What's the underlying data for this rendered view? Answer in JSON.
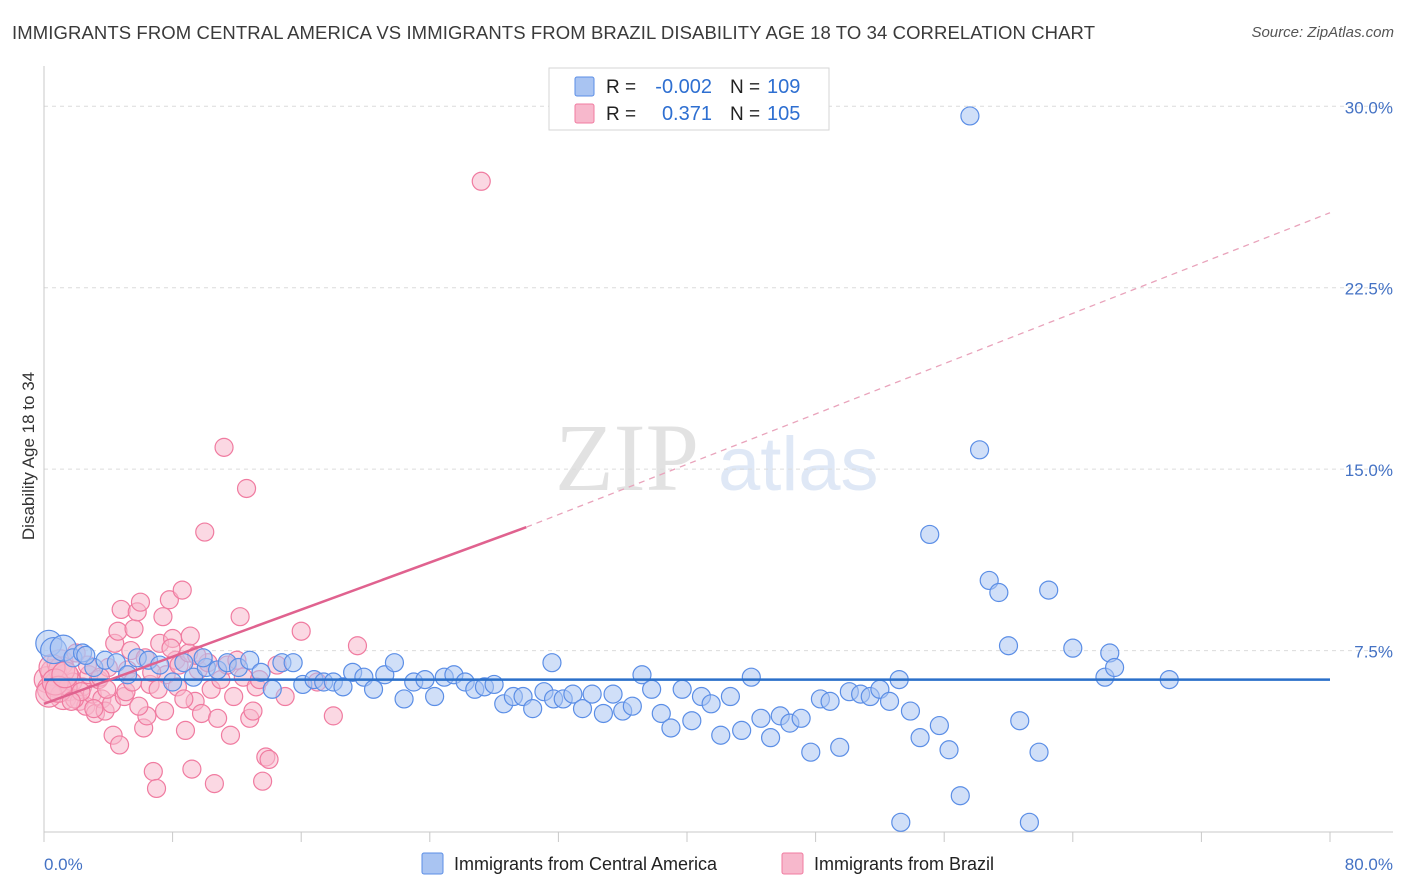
{
  "title": "IMMIGRANTS FROM CENTRAL AMERICA VS IMMIGRANTS FROM BRAZIL DISABILITY AGE 18 TO 34 CORRELATION CHART",
  "source": "Source: ZipAtlas.com",
  "watermark": {
    "zip": "ZIP",
    "atlas": "atlas"
  },
  "colors": {
    "blue": "#5b8ee6",
    "blue_fill": "#a9c4f2",
    "pink": "#f07ba0",
    "pink_fill": "#f7b8cc",
    "blue_line": "#2a6fc9",
    "pink_line": "#e0628f",
    "axis_text": "#4472c4"
  },
  "stats": {
    "r_label": "R =",
    "n_label": "N =",
    "series": [
      {
        "r": "-0.002",
        "n": "109"
      },
      {
        "r": "0.371",
        "n": "105"
      }
    ]
  },
  "legend": [
    "Immigrants from Central America",
    "Immigrants from Brazil"
  ],
  "chart_data": {
    "type": "scatter",
    "title": "IMMIGRANTS FROM CENTRAL AMERICA VS IMMIGRANTS FROM BRAZIL DISABILITY AGE 18 TO 34 CORRELATION CHART",
    "xlabel": "",
    "ylabel": "Disability Age 18 to 34",
    "xlim": [
      0,
      80
    ],
    "ylim": [
      0,
      31.5
    ],
    "x_tick_labels": [
      "0.0%",
      "80.0%"
    ],
    "y_ticks": [
      7.5,
      15.0,
      22.5,
      30.0
    ],
    "y_tick_labels": [
      "7.5%",
      "15.0%",
      "22.5%",
      "30.0%"
    ],
    "grid": "horizontal dashed",
    "legend_position": "bottom-center",
    "series": [
      {
        "name": "Immigrants from Central America",
        "r": -0.002,
        "n": 109,
        "trend": {
          "x": [
            0,
            80
          ],
          "y": [
            6.3,
            6.3
          ]
        },
        "points": [
          [
            0.3,
            7.8
          ],
          [
            0.6,
            7.5
          ],
          [
            1.2,
            7.6
          ],
          [
            1.8,
            7.2
          ],
          [
            2.4,
            7.4
          ],
          [
            3.1,
            6.8
          ],
          [
            3.8,
            7.1
          ],
          [
            4.5,
            7.0
          ],
          [
            5.2,
            6.5
          ],
          [
            5.8,
            7.2
          ],
          [
            6.5,
            7.1
          ],
          [
            7.2,
            6.9
          ],
          [
            8.0,
            6.2
          ],
          [
            8.7,
            7.0
          ],
          [
            9.3,
            6.4
          ],
          [
            10.1,
            6.8
          ],
          [
            10.8,
            6.7
          ],
          [
            11.4,
            7.0
          ],
          [
            12.1,
            6.8
          ],
          [
            12.8,
            7.1
          ],
          [
            13.5,
            6.6
          ],
          [
            14.2,
            5.9
          ],
          [
            14.8,
            7.0
          ],
          [
            15.5,
            7.0
          ],
          [
            16.1,
            6.1
          ],
          [
            16.8,
            6.3
          ],
          [
            17.4,
            6.2
          ],
          [
            18.0,
            6.2
          ],
          [
            18.6,
            6.0
          ],
          [
            19.2,
            6.6
          ],
          [
            19.9,
            6.4
          ],
          [
            20.5,
            5.9
          ],
          [
            21.2,
            6.5
          ],
          [
            21.8,
            7.0
          ],
          [
            22.4,
            5.5
          ],
          [
            23.0,
            6.2
          ],
          [
            23.7,
            6.3
          ],
          [
            24.3,
            5.6
          ],
          [
            24.9,
            6.4
          ],
          [
            25.5,
            6.5
          ],
          [
            26.2,
            6.2
          ],
          [
            26.8,
            5.9
          ],
          [
            27.4,
            6.0
          ],
          [
            28.0,
            6.1
          ],
          [
            28.6,
            5.3
          ],
          [
            29.2,
            5.6
          ],
          [
            29.8,
            5.6
          ],
          [
            30.4,
            5.1
          ],
          [
            31.1,
            5.8
          ],
          [
            31.7,
            5.5
          ],
          [
            32.3,
            5.5
          ],
          [
            32.9,
            5.7
          ],
          [
            33.5,
            5.1
          ],
          [
            34.1,
            5.7
          ],
          [
            34.8,
            4.9
          ],
          [
            35.4,
            5.7
          ],
          [
            36.0,
            5.0
          ],
          [
            36.6,
            5.2
          ],
          [
            37.2,
            6.5
          ],
          [
            37.8,
            5.9
          ],
          [
            38.4,
            4.9
          ],
          [
            39.0,
            4.3
          ],
          [
            39.7,
            5.9
          ],
          [
            40.3,
            4.6
          ],
          [
            40.9,
            5.6
          ],
          [
            41.5,
            5.3
          ],
          [
            42.1,
            4.0
          ],
          [
            42.7,
            5.6
          ],
          [
            43.4,
            4.2
          ],
          [
            44.0,
            6.4
          ],
          [
            44.6,
            4.7
          ],
          [
            45.2,
            3.9
          ],
          [
            45.8,
            4.8
          ],
          [
            46.4,
            4.5
          ],
          [
            47.1,
            4.7
          ],
          [
            47.7,
            3.3
          ],
          [
            48.3,
            5.5
          ],
          [
            48.9,
            5.4
          ],
          [
            49.5,
            3.5
          ],
          [
            50.1,
            5.8
          ],
          [
            50.8,
            5.7
          ],
          [
            51.4,
            5.6
          ],
          [
            52.0,
            5.9
          ],
          [
            52.6,
            5.4
          ],
          [
            53.2,
            6.3
          ],
          [
            53.9,
            5.0
          ],
          [
            54.5,
            3.9
          ],
          [
            55.1,
            12.3
          ],
          [
            55.7,
            4.4
          ],
          [
            56.3,
            3.4
          ],
          [
            57.0,
            1.5
          ],
          [
            57.6,
            29.6
          ],
          [
            58.2,
            15.8
          ],
          [
            58.8,
            10.4
          ],
          [
            59.4,
            9.9
          ],
          [
            60.0,
            7.7
          ],
          [
            60.7,
            4.6
          ],
          [
            61.3,
            0.4
          ],
          [
            61.9,
            3.3
          ],
          [
            62.5,
            10.0
          ],
          [
            64.0,
            7.6
          ],
          [
            66.0,
            6.4
          ],
          [
            66.3,
            7.4
          ],
          [
            66.6,
            6.8
          ],
          [
            53.3,
            0.4
          ],
          [
            70.0,
            6.3
          ],
          [
            2.6,
            7.3
          ],
          [
            9.9,
            7.2
          ],
          [
            31.6,
            7.0
          ]
        ]
      },
      {
        "name": "Immigrants from Brazil",
        "r": 0.371,
        "n": 105,
        "trend": {
          "x": [
            0,
            30
          ],
          "y": [
            5.3,
            12.6
          ]
        },
        "trend_dashed": {
          "x": [
            30,
            80
          ],
          "y": [
            12.6,
            25.6
          ]
        },
        "points": [
          [
            0.2,
            6.3
          ],
          [
            0.4,
            5.9
          ],
          [
            0.6,
            6.6
          ],
          [
            0.8,
            6.1
          ],
          [
            1.0,
            7.0
          ],
          [
            1.2,
            5.6
          ],
          [
            1.4,
            6.4
          ],
          [
            1.6,
            5.8
          ],
          [
            1.8,
            6.2
          ],
          [
            2.0,
            7.4
          ],
          [
            2.2,
            5.4
          ],
          [
            2.4,
            6.0
          ],
          [
            2.6,
            5.2
          ],
          [
            2.8,
            6.5
          ],
          [
            3.0,
            5.7
          ],
          [
            3.2,
            4.9
          ],
          [
            3.4,
            6.3
          ],
          [
            3.6,
            5.5
          ],
          [
            3.8,
            5.0
          ],
          [
            4.0,
            6.8
          ],
          [
            4.2,
            5.3
          ],
          [
            4.4,
            7.8
          ],
          [
            4.6,
            8.3
          ],
          [
            4.8,
            9.2
          ],
          [
            5.0,
            5.6
          ],
          [
            5.2,
            6.7
          ],
          [
            5.4,
            7.5
          ],
          [
            5.6,
            8.4
          ],
          [
            5.8,
            9.1
          ],
          [
            6.0,
            9.5
          ],
          [
            6.2,
            4.3
          ],
          [
            6.4,
            4.8
          ],
          [
            6.6,
            6.1
          ],
          [
            6.8,
            2.5
          ],
          [
            7.0,
            1.8
          ],
          [
            7.2,
            7.8
          ],
          [
            7.4,
            8.9
          ],
          [
            7.6,
            6.5
          ],
          [
            7.8,
            9.6
          ],
          [
            8.0,
            8.0
          ],
          [
            8.2,
            7.1
          ],
          [
            8.4,
            6.9
          ],
          [
            8.6,
            10.0
          ],
          [
            8.8,
            4.2
          ],
          [
            9.0,
            7.4
          ],
          [
            9.2,
            2.6
          ],
          [
            9.4,
            5.4
          ],
          [
            9.6,
            6.7
          ],
          [
            9.8,
            4.9
          ],
          [
            10.0,
            12.4
          ],
          [
            10.2,
            7.0
          ],
          [
            10.4,
            5.9
          ],
          [
            10.6,
            2.0
          ],
          [
            10.8,
            4.7
          ],
          [
            11.0,
            6.3
          ],
          [
            11.2,
            15.9
          ],
          [
            11.4,
            6.9
          ],
          [
            11.6,
            4.0
          ],
          [
            11.8,
            5.6
          ],
          [
            12.0,
            7.1
          ],
          [
            12.2,
            8.9
          ],
          [
            12.4,
            6.4
          ],
          [
            12.6,
            14.2
          ],
          [
            12.8,
            4.7
          ],
          [
            13.0,
            5.0
          ],
          [
            13.2,
            6.0
          ],
          [
            13.4,
            6.3
          ],
          [
            13.6,
            2.1
          ],
          [
            13.8,
            3.1
          ],
          [
            14.0,
            3.0
          ],
          [
            14.5,
            6.9
          ],
          [
            15.0,
            5.6
          ],
          [
            16.0,
            8.3
          ],
          [
            17.0,
            6.2
          ],
          [
            18.0,
            4.8
          ],
          [
            19.5,
            7.7
          ],
          [
            27.2,
            26.9
          ],
          [
            1.1,
            6.7
          ],
          [
            1.5,
            6.0
          ],
          [
            1.9,
            5.5
          ],
          [
            2.3,
            5.8
          ],
          [
            2.7,
            6.9
          ],
          [
            3.1,
            5.1
          ],
          [
            3.5,
            6.4
          ],
          [
            3.9,
            5.9
          ],
          [
            4.3,
            4.0
          ],
          [
            4.7,
            3.6
          ],
          [
            5.1,
            5.8
          ],
          [
            5.5,
            6.2
          ],
          [
            5.9,
            5.2
          ],
          [
            6.3,
            7.2
          ],
          [
            6.7,
            6.6
          ],
          [
            7.1,
            5.9
          ],
          [
            7.5,
            5.0
          ],
          [
            7.9,
            7.6
          ],
          [
            8.3,
            6.0
          ],
          [
            8.7,
            5.5
          ],
          [
            9.1,
            8.1
          ],
          [
            9.5,
            7.3
          ],
          [
            0.3,
            5.7
          ],
          [
            0.5,
            6.8
          ],
          [
            0.7,
            6.2
          ],
          [
            0.9,
            5.9
          ],
          [
            1.3,
            6.5
          ],
          [
            1.7,
            5.4
          ]
        ]
      }
    ]
  }
}
